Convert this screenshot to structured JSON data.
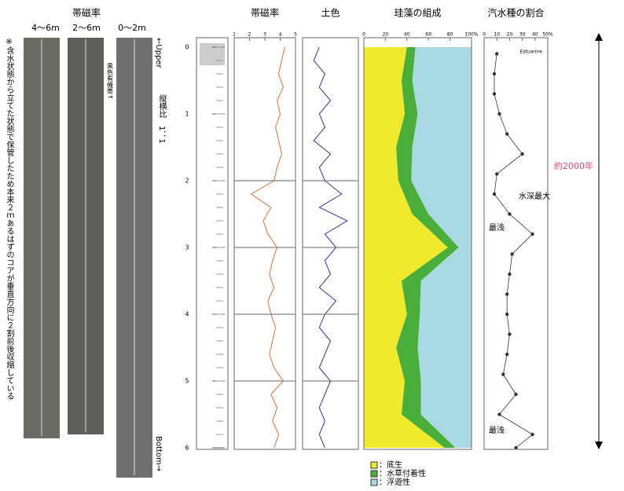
{
  "left_panel": {
    "title": "帯磁率",
    "core_labels": [
      "4〜6m",
      "2〜6m",
      "0〜2m"
    ],
    "note": "※含水状態から立てた状態で保管したため本来２ｍあるはずのコアが垂直方向に２割前後収縮している",
    "core_annotation": "黒色有機帯↑",
    "upper": "←Upper",
    "ratio": "縦横比　1：1",
    "bottom": "Bottom→"
  },
  "depth_axis": {
    "lim": [
      0,
      6
    ],
    "ticks": [
      0,
      1,
      2,
      3,
      4,
      5,
      6
    ]
  },
  "span_label": "約2000年",
  "chart_data": [
    {
      "type": "line",
      "title": "帯磁率",
      "xlim": [
        1,
        5
      ],
      "xticks": [
        1,
        2,
        3,
        4,
        5
      ],
      "color": "#d9703a",
      "depth": [
        0,
        0.2,
        0.4,
        0.6,
        0.8,
        1,
        1.2,
        1.4,
        1.6,
        1.8,
        2,
        2.2,
        2.4,
        2.6,
        2.8,
        3,
        3.2,
        3.4,
        3.6,
        3.8,
        4,
        4.2,
        4.4,
        4.6,
        4.8,
        5,
        5.2,
        5.4,
        5.6,
        5.8,
        6
      ],
      "values": [
        4.3,
        4.1,
        3.9,
        4.2,
        3.8,
        4,
        3.7,
        3.9,
        4.1,
        3.8,
        3.6,
        2.1,
        3.4,
        2.9,
        3.2,
        3.8,
        3.5,
        3.3,
        3.6,
        3.2,
        3.4,
        3.7,
        3.5,
        3.3,
        3.6,
        4.2,
        3.4,
        3.8,
        3.5,
        3.9,
        3.6
      ]
    },
    {
      "type": "line",
      "title": "土色",
      "xlim": [
        0,
        10
      ],
      "color": "#2c3a9c",
      "depth": [
        0,
        0.2,
        0.4,
        0.6,
        0.8,
        1,
        1.2,
        1.4,
        1.6,
        1.8,
        2,
        2.2,
        2.4,
        2.6,
        2.8,
        3,
        3.2,
        3.4,
        3.6,
        3.8,
        4,
        4.2,
        4.4,
        4.6,
        4.8,
        5,
        5.2,
        5.4,
        5.6,
        5.8,
        6
      ],
      "values": [
        3,
        2,
        4,
        3,
        5,
        3,
        4,
        2,
        5,
        3,
        4,
        7,
        3,
        8,
        4,
        6,
        4,
        5,
        3,
        6,
        4,
        3,
        5,
        4,
        3,
        5,
        4,
        3,
        4,
        3,
        4
      ]
    },
    {
      "type": "area",
      "title": "珪藻の組成",
      "xlim": [
        0,
        100
      ],
      "xticks": [
        0,
        20,
        40,
        60,
        80,
        {
          "value": 100,
          "label": "100%"
        }
      ],
      "depth": [
        0,
        0.5,
        1,
        1.5,
        2,
        2.5,
        3,
        3.5,
        4,
        4.5,
        5,
        5.5,
        6
      ],
      "series": [
        {
          "name": "：底生",
          "color": "#f0ea2c",
          "values": [
            40,
            35,
            38,
            30,
            32,
            45,
            78,
            35,
            40,
            30,
            38,
            35,
            75
          ]
        },
        {
          "name": "：水草付着性",
          "color": "#4aae3a",
          "values": [
            8,
            10,
            12,
            15,
            12,
            15,
            10,
            18,
            12,
            20,
            15,
            18,
            10
          ]
        },
        {
          "name": "：浮遊性",
          "color": "#a9d9e2",
          "values": [
            52,
            55,
            50,
            55,
            56,
            40,
            12,
            47,
            48,
            50,
            47,
            47,
            15
          ]
        }
      ]
    },
    {
      "type": "scatter",
      "title": "汽水種の割合",
      "xlim": [
        0,
        50
      ],
      "xticks": [
        0,
        10,
        20,
        30,
        40,
        {
          "value": 50,
          "label": "50%"
        }
      ],
      "color": "#333",
      "depth": [
        0.1,
        0.4,
        0.7,
        1.0,
        1.3,
        1.6,
        1.9,
        2.2,
        2.5,
        2.8,
        3.1,
        3.4,
        3.7,
        4.0,
        4.3,
        4.6,
        4.9,
        5.2,
        5.5,
        5.8,
        6.0
      ],
      "values": [
        10,
        8,
        8,
        12,
        18,
        30,
        10,
        8,
        20,
        38,
        22,
        20,
        18,
        18,
        20,
        18,
        15,
        25,
        12,
        38,
        25
      ],
      "annotations": [
        "Estuarine",
        "水深最大",
        "最浅",
        "最浅"
      ]
    }
  ]
}
